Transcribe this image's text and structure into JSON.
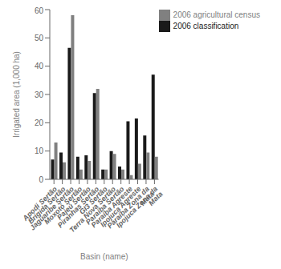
{
  "chart_data": {
    "type": "bar",
    "categories": [
      "Apodi Sertão",
      "Brígida Sertão",
      "Jaguaribe Sertão",
      "Moxotó Sertão",
      "Pajeú Sertão",
      "Piranhas Sertão",
      "GI3 Sertão",
      "Terra Nova Sertão",
      "Paraíba Sertão",
      "Paraíba Agreste",
      "Ipojuca Agreste",
      "Paraíba Zona da Mata",
      "Ipojuca Zona da Mata"
    ],
    "series": [
      {
        "name": "2006 classification",
        "color": "#1a1a1a",
        "values": [
          7,
          9.5,
          46.5,
          8,
          8.5,
          30.5,
          3.5,
          10,
          4.5,
          20.5,
          21.5,
          15.5,
          37
        ]
      },
      {
        "name": "2006 agricultural census",
        "color": "#808080",
        "values": [
          13,
          6,
          58,
          3.5,
          6.5,
          32,
          3.5,
          9,
          3.5,
          1.5,
          5.5,
          9.5,
          8
        ]
      }
    ],
    "ylabel": "Irrigated area (1,000 ha)",
    "xlabel": "Basin (name)",
    "ylim": [
      0,
      60
    ],
    "yticks": [
      0,
      10,
      20,
      30,
      40,
      50,
      60
    ],
    "legend": "upper right",
    "grid": false
  }
}
